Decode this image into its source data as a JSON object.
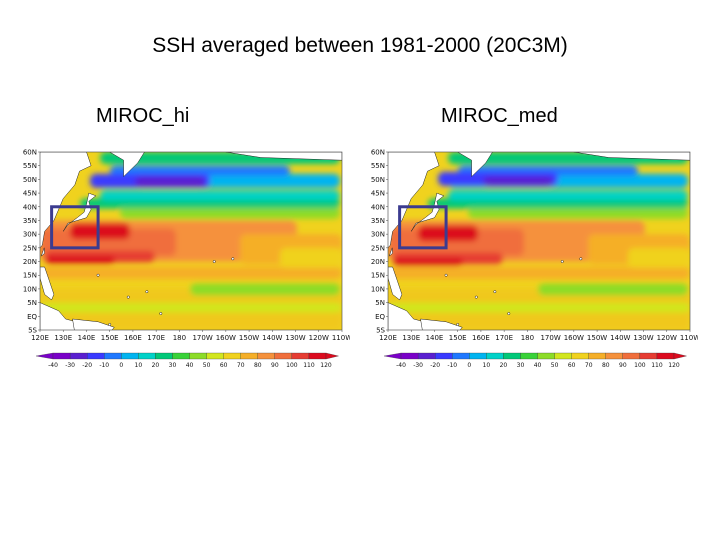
{
  "title": "SSH averaged between 1981-2000 (20C3M)",
  "panels": [
    {
      "label": "MIROC_hi"
    },
    {
      "label": "MIROC_med"
    }
  ],
  "map": {
    "lat_labels": [
      "60N",
      "55N",
      "50N",
      "45N",
      "40N",
      "35N",
      "30N",
      "25N",
      "20N",
      "15N",
      "10N",
      "5N",
      "EQ",
      "5S"
    ],
    "lon_labels": [
      "120E",
      "130E",
      "140E",
      "150E",
      "160E",
      "170E",
      "180",
      "170W",
      "160W",
      "150W",
      "140W",
      "130W",
      "120W",
      "110W"
    ],
    "lon_range": [
      "120E",
      "110W"
    ],
    "lat_range": [
      "5S",
      "60N"
    ],
    "highlight_box": {
      "lon": [
        125,
        145
      ],
      "lat": [
        25,
        40
      ],
      "color": "#3b3b8f"
    }
  },
  "colorbar": {
    "ticks": [
      "-40",
      "-30",
      "-20",
      "-10",
      "0",
      "10",
      "20",
      "30",
      "40",
      "50",
      "60",
      "70",
      "80",
      "90",
      "100",
      "110",
      "120"
    ],
    "colors": [
      "#7a00c8",
      "#5a1fd0",
      "#3a3aff",
      "#1f78ff",
      "#00b4f0",
      "#00d2c8",
      "#00c878",
      "#38d238",
      "#8cdc28",
      "#d2e61e",
      "#f0d21e",
      "#f5af28",
      "#f5913c",
      "#f06e3c",
      "#e63c32",
      "#dc0a1e"
    ]
  }
}
